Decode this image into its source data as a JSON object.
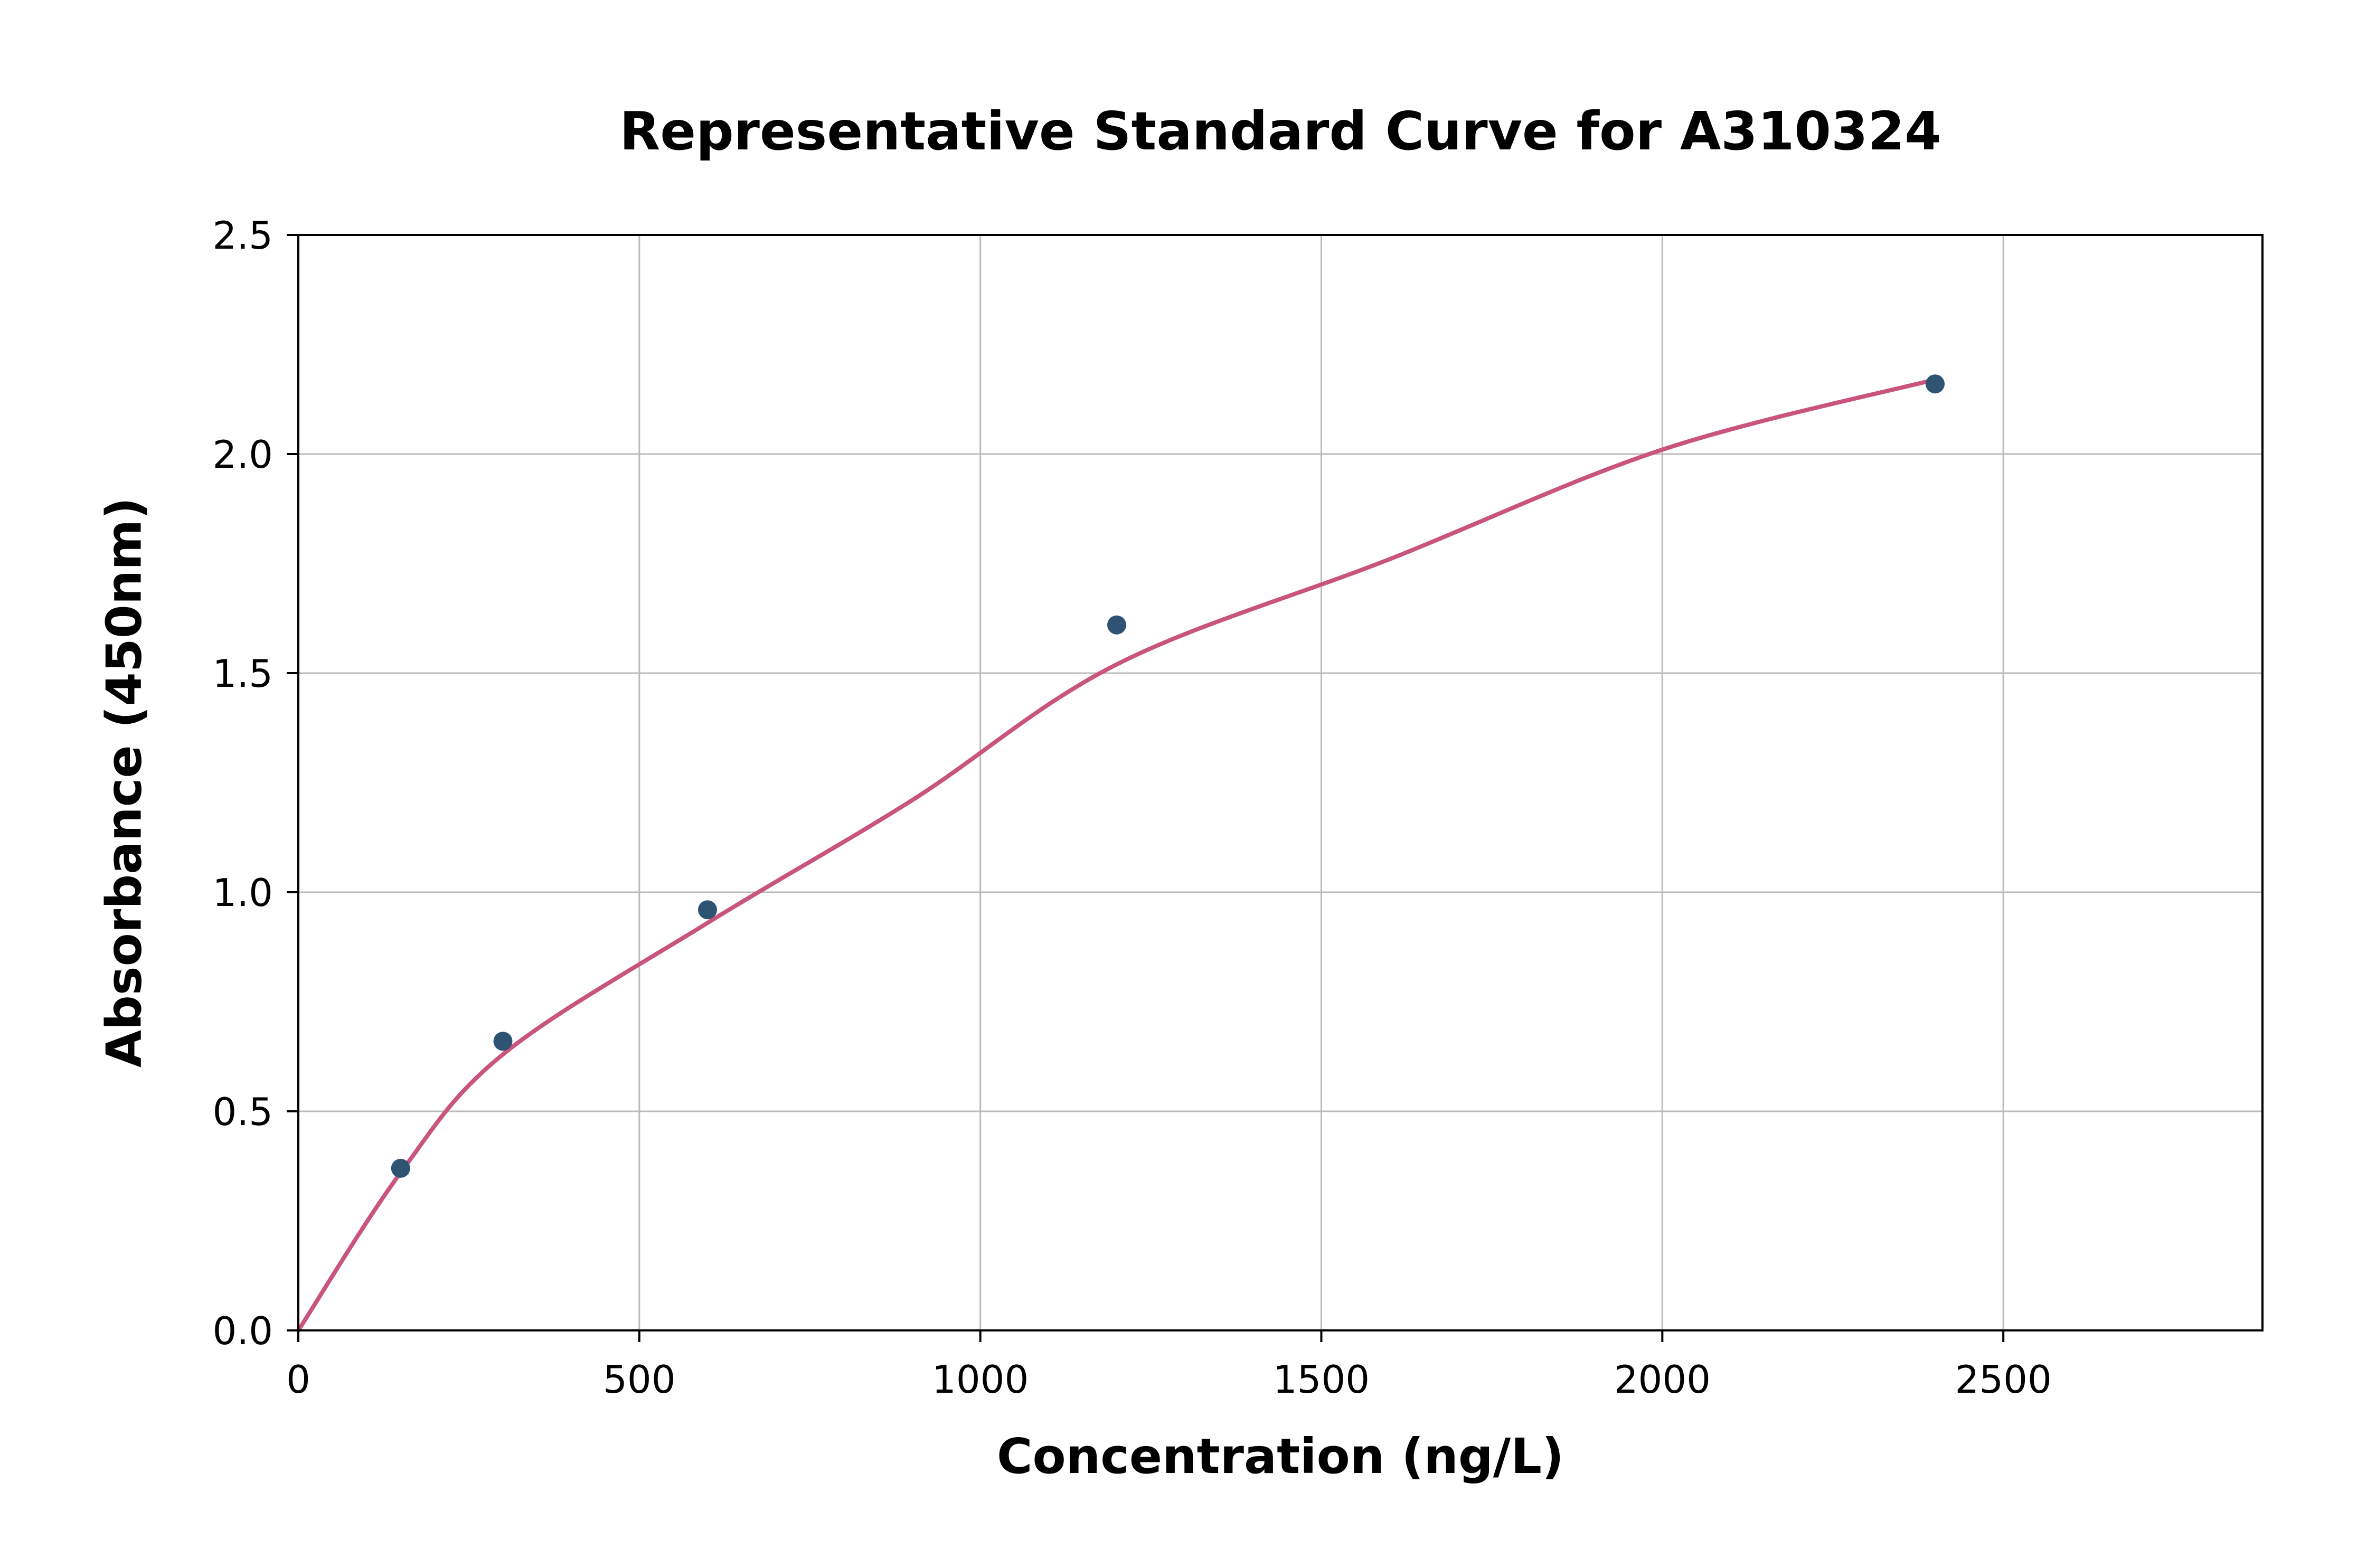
{
  "chart_data": {
    "type": "scatter",
    "title": "Representative Standard Curve for A310324",
    "xlabel": "Concentration (ng/L)",
    "ylabel": "Absorbance (450nm)",
    "xlim": [
      0,
      2880
    ],
    "ylim": [
      0,
      2.5
    ],
    "xticks": [
      "0",
      "500",
      "1000",
      "1500",
      "2000",
      "2500"
    ],
    "yticks": [
      "0.0",
      "0.5",
      "1.0",
      "1.5",
      "2.0",
      "2.5"
    ],
    "grid": true,
    "legend": "none",
    "points": {
      "x": [
        150,
        300,
        600,
        1200,
        2400
      ],
      "y": [
        0.37,
        0.66,
        0.96,
        1.61,
        2.16
      ]
    },
    "curve": {
      "x": [
        0,
        150,
        300,
        600,
        900,
        1200,
        1600,
        2000,
        2400
      ],
      "y": [
        0.0,
        0.36,
        0.63,
        0.93,
        1.21,
        1.52,
        1.76,
        2.01,
        2.17
      ]
    },
    "point_color": "#2e5373",
    "curve_color": "#c9547c",
    "grid_color": "#bbbbbb",
    "axis_color": "#000000",
    "background_color": "#ffffff"
  }
}
